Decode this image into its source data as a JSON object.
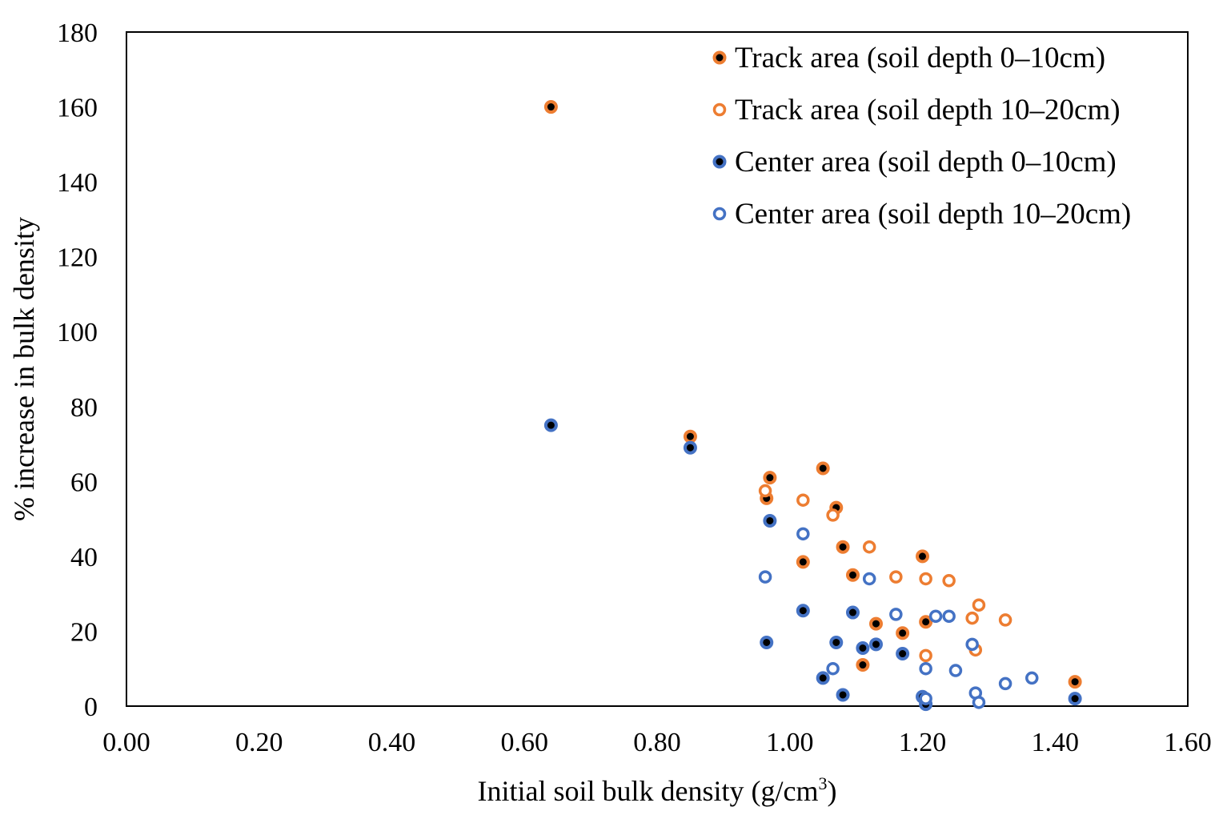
{
  "chart_data": {
    "type": "scatter",
    "title": "",
    "xlabel": "Initial soil bulk density (g/cm",
    "xlabel_sup": "3",
    "xlabel_end": ")",
    "ylabel": "% increase in bulk density",
    "xlim": [
      0,
      1.6
    ],
    "ylim": [
      0,
      180
    ],
    "xticks": [
      0,
      0.2,
      0.4,
      0.6,
      0.8,
      1.0,
      1.2,
      1.4,
      1.6
    ],
    "xtick_labels": [
      "0.00",
      "0.20",
      "0.40",
      "0.60",
      "0.80",
      "1.00",
      "1.20",
      "1.40",
      "1.60"
    ],
    "yticks": [
      0,
      20,
      40,
      60,
      80,
      100,
      120,
      140,
      160,
      180
    ],
    "ytick_labels": [
      "0",
      "20",
      "40",
      "60",
      "80",
      "100",
      "120",
      "140",
      "160",
      "180"
    ],
    "grid": false,
    "legend_position": "top-right",
    "series": [
      {
        "name": "Track area (soil depth 0–10cm)",
        "color": "#ED7D31",
        "marker": "filled",
        "points": [
          [
            0.64,
            160
          ],
          [
            0.85,
            72
          ],
          [
            0.97,
            61
          ],
          [
            0.965,
            55.5
          ],
          [
            1.05,
            63.5
          ],
          [
            1.07,
            53
          ],
          [
            1.08,
            42.5
          ],
          [
            1.02,
            38.5
          ],
          [
            1.095,
            35
          ],
          [
            1.2,
            40
          ],
          [
            1.13,
            22
          ],
          [
            1.17,
            19.5
          ],
          [
            1.205,
            22.5
          ],
          [
            1.11,
            11
          ],
          [
            1.43,
            6.5
          ]
        ]
      },
      {
        "name": "Track area (soil depth 10–20cm)",
        "color": "#ED7D31",
        "marker": "hollow",
        "points": [
          [
            0.963,
            57.5
          ],
          [
            1.02,
            55
          ],
          [
            1.065,
            51
          ],
          [
            1.12,
            42.5
          ],
          [
            1.16,
            34.5
          ],
          [
            1.205,
            34
          ],
          [
            1.24,
            33.5
          ],
          [
            1.285,
            27
          ],
          [
            1.275,
            23.5
          ],
          [
            1.325,
            23
          ],
          [
            1.205,
            13.5
          ],
          [
            1.28,
            15
          ]
        ]
      },
      {
        "name": "Center area (soil depth 0–10cm)",
        "color": "#4472C4",
        "marker": "filled",
        "points": [
          [
            0.64,
            75
          ],
          [
            0.85,
            69
          ],
          [
            0.97,
            49.5
          ],
          [
            1.02,
            25.5
          ],
          [
            1.095,
            25
          ],
          [
            0.965,
            17
          ],
          [
            1.07,
            17
          ],
          [
            1.11,
            15.5
          ],
          [
            1.13,
            16.5
          ],
          [
            1.17,
            14
          ],
          [
            1.05,
            7.5
          ],
          [
            1.08,
            3
          ],
          [
            1.2,
            2.5
          ],
          [
            1.205,
            0.5
          ],
          [
            1.43,
            2
          ]
        ]
      },
      {
        "name": "Center area (soil depth 10–20cm)",
        "color": "#4472C4",
        "marker": "hollow",
        "points": [
          [
            0.963,
            34.5
          ],
          [
            1.02,
            46
          ],
          [
            1.12,
            34
          ],
          [
            1.16,
            24.5
          ],
          [
            1.22,
            24
          ],
          [
            1.24,
            24
          ],
          [
            1.275,
            16.5
          ],
          [
            1.065,
            10
          ],
          [
            1.205,
            10
          ],
          [
            1.25,
            9.5
          ],
          [
            1.205,
            2
          ],
          [
            1.28,
            3.5
          ],
          [
            1.285,
            1
          ],
          [
            1.325,
            6
          ],
          [
            1.365,
            7.5
          ]
        ]
      }
    ]
  }
}
